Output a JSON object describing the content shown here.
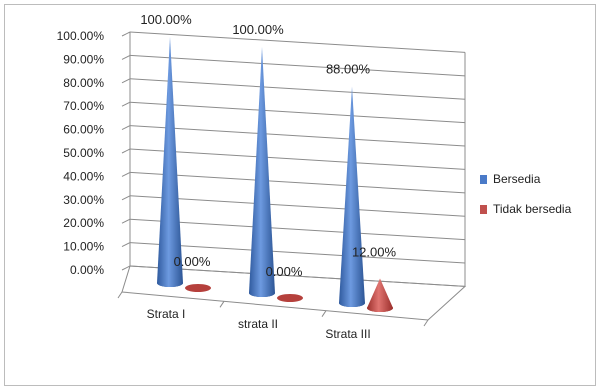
{
  "chart_data": {
    "type": "bar",
    "subtype": "3d-cone",
    "categories": [
      "Strata I",
      "strata II",
      "Strata III"
    ],
    "series": [
      {
        "name": "Bersedia",
        "values": [
          100,
          100,
          88
        ],
        "labels": [
          "100.00%",
          "100.00%",
          "88.00%"
        ],
        "color": "#4a7ac8"
      },
      {
        "name": "Tidak bersedia",
        "values": [
          0,
          0,
          12
        ],
        "labels": [
          "0.00%",
          "0.00%",
          "12.00%"
        ],
        "color": "#c0504d"
      }
    ],
    "y_ticks": [
      "0.00%",
      "10.00%",
      "20.00%",
      "30.00%",
      "40.00%",
      "50.00%",
      "60.00%",
      "70.00%",
      "80.00%",
      "90.00%",
      "100.00%"
    ],
    "ylim": [
      0,
      100
    ],
    "grid": true,
    "legend_position": "right"
  }
}
